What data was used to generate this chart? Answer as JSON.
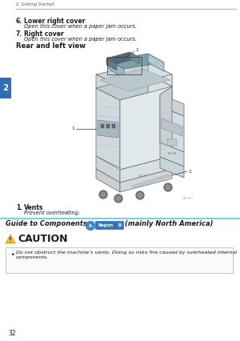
{
  "page_bg": "#ffffff",
  "header_text": "2. Getting Started",
  "header_line_color": "#5bc8dc",
  "sidebar_color": "#2d6eb5",
  "sidebar_number": "2",
  "page_number": "32",
  "section6_title": "6.   Lower right cover",
  "section6_body": "Open this cover when a paper jam occurs.",
  "section7_title": "7.   Right cover",
  "section7_body": "Open this cover when a paper jam occurs.",
  "rear_title": "Rear and left view",
  "vents_title": "1.   Vents",
  "vents_body": "Prevent overheating.",
  "guide_title": "Guide to Components",
  "guide_suffix": "(mainly North America)",
  "caution_title": "CAUTION",
  "caution_triangle_color": "#f5c518",
  "caution_body": "Do not obstruct the machine’s vents. Doing so risks fire caused by overheated internal\ncomponents.",
  "text_color": "#1a1a1a",
  "gray_text": "#555555",
  "body_italic": true
}
